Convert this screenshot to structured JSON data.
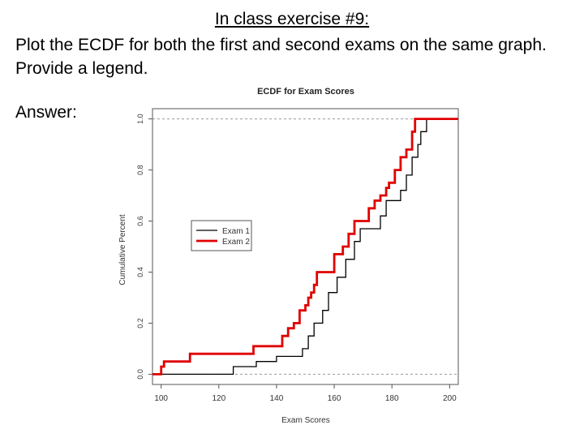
{
  "slide": {
    "title": "In class exercise #9:",
    "instructions": "Plot the ECDF for both the first and second exams on the same graph.  Provide a legend.",
    "answer_label": "Answer:"
  },
  "chart_data": {
    "type": "line",
    "title": "ECDF for Exam Scores",
    "xlabel": "Exam Scores",
    "ylabel": "Cumulative Percent",
    "xlim": [
      97,
      203
    ],
    "ylim": [
      -0.04,
      1.04
    ],
    "x_ticks": [
      100,
      120,
      140,
      160,
      180,
      200
    ],
    "y_ticks": [
      0.0,
      0.2,
      0.4,
      0.6,
      0.8,
      1.0
    ],
    "y_tick_labels": [
      "0.0",
      "0.2",
      "0.4",
      "0.6",
      "0.8",
      "1.0"
    ],
    "reference_lines": [
      0,
      1
    ],
    "legend": {
      "placement": "center-left"
    },
    "series": [
      {
        "name": "Exam 1",
        "color": "#000000",
        "points": [
          [
            97,
            0.0
          ],
          [
            125,
            0.0
          ],
          [
            125,
            0.03
          ],
          [
            133,
            0.03
          ],
          [
            133,
            0.05
          ],
          [
            140,
            0.05
          ],
          [
            140,
            0.07
          ],
          [
            149,
            0.07
          ],
          [
            149,
            0.1
          ],
          [
            151,
            0.1
          ],
          [
            151,
            0.15
          ],
          [
            153,
            0.15
          ],
          [
            153,
            0.2
          ],
          [
            156,
            0.2
          ],
          [
            156,
            0.25
          ],
          [
            158,
            0.25
          ],
          [
            158,
            0.32
          ],
          [
            161,
            0.32
          ],
          [
            161,
            0.38
          ],
          [
            164,
            0.38
          ],
          [
            164,
            0.45
          ],
          [
            167,
            0.45
          ],
          [
            167,
            0.52
          ],
          [
            169,
            0.52
          ],
          [
            169,
            0.57
          ],
          [
            176,
            0.57
          ],
          [
            176,
            0.62
          ],
          [
            178,
            0.62
          ],
          [
            178,
            0.68
          ],
          [
            183,
            0.68
          ],
          [
            183,
            0.72
          ],
          [
            185,
            0.72
          ],
          [
            185,
            0.78
          ],
          [
            187,
            0.78
          ],
          [
            187,
            0.85
          ],
          [
            189,
            0.85
          ],
          [
            189,
            0.9
          ],
          [
            190,
            0.9
          ],
          [
            190,
            0.95
          ],
          [
            192,
            0.95
          ],
          [
            192,
            1.0
          ],
          [
            203,
            1.0
          ]
        ]
      },
      {
        "name": "Exam 2",
        "color": "#e00000",
        "points": [
          [
            97,
            0.0
          ],
          [
            100,
            0.0
          ],
          [
            100,
            0.03
          ],
          [
            101,
            0.03
          ],
          [
            101,
            0.05
          ],
          [
            110,
            0.05
          ],
          [
            110,
            0.08
          ],
          [
            132,
            0.08
          ],
          [
            132,
            0.11
          ],
          [
            142,
            0.11
          ],
          [
            142,
            0.15
          ],
          [
            144,
            0.15
          ],
          [
            144,
            0.18
          ],
          [
            146,
            0.18
          ],
          [
            146,
            0.2
          ],
          [
            148,
            0.2
          ],
          [
            148,
            0.25
          ],
          [
            150,
            0.25
          ],
          [
            150,
            0.27
          ],
          [
            151,
            0.27
          ],
          [
            151,
            0.3
          ],
          [
            152,
            0.3
          ],
          [
            152,
            0.32
          ],
          [
            153,
            0.32
          ],
          [
            153,
            0.35
          ],
          [
            154,
            0.35
          ],
          [
            154,
            0.4
          ],
          [
            160,
            0.4
          ],
          [
            160,
            0.47
          ],
          [
            163,
            0.47
          ],
          [
            163,
            0.5
          ],
          [
            165,
            0.5
          ],
          [
            165,
            0.55
          ],
          [
            167,
            0.55
          ],
          [
            167,
            0.6
          ],
          [
            172,
            0.6
          ],
          [
            172,
            0.65
          ],
          [
            174,
            0.65
          ],
          [
            174,
            0.68
          ],
          [
            176,
            0.68
          ],
          [
            176,
            0.7
          ],
          [
            178,
            0.7
          ],
          [
            178,
            0.73
          ],
          [
            179,
            0.73
          ],
          [
            179,
            0.75
          ],
          [
            181,
            0.75
          ],
          [
            181,
            0.8
          ],
          [
            183,
            0.8
          ],
          [
            183,
            0.85
          ],
          [
            185,
            0.85
          ],
          [
            185,
            0.88
          ],
          [
            187,
            0.88
          ],
          [
            187,
            0.95
          ],
          [
            188,
            0.95
          ],
          [
            188,
            1.0
          ],
          [
            203,
            1.0
          ]
        ]
      }
    ]
  }
}
